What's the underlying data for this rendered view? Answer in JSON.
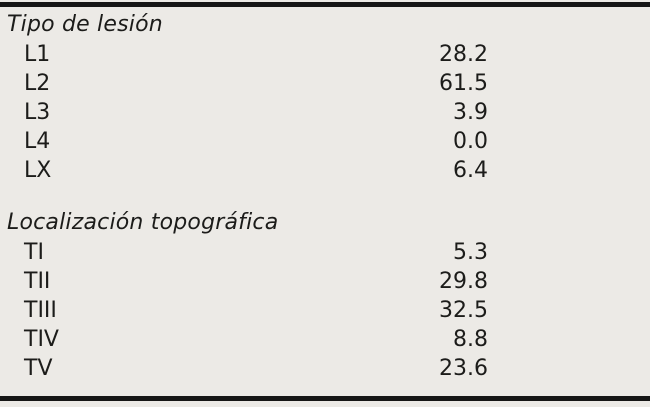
{
  "colors": {
    "background": "#ECEAE6",
    "text": "#1C1C1A",
    "rule": "#161616"
  },
  "table": {
    "sections": [
      {
        "heading": "Tipo de lesión",
        "rows": [
          {
            "label": "L1",
            "value": "28.2"
          },
          {
            "label": "L2",
            "value": "61.5"
          },
          {
            "label": "L3",
            "value": "3.9"
          },
          {
            "label": "L4",
            "value": "0.0"
          },
          {
            "label": "LX",
            "value": "6.4"
          }
        ]
      },
      {
        "heading": "Localización topográfica",
        "rows": [
          {
            "label": "TI",
            "value": "5.3"
          },
          {
            "label": "TII",
            "value": "29.8"
          },
          {
            "label": "TIII",
            "value": "32.5"
          },
          {
            "label": "TIV",
            "value": "8.8"
          },
          {
            "label": "TV",
            "value": "23.6"
          }
        ]
      }
    ]
  }
}
